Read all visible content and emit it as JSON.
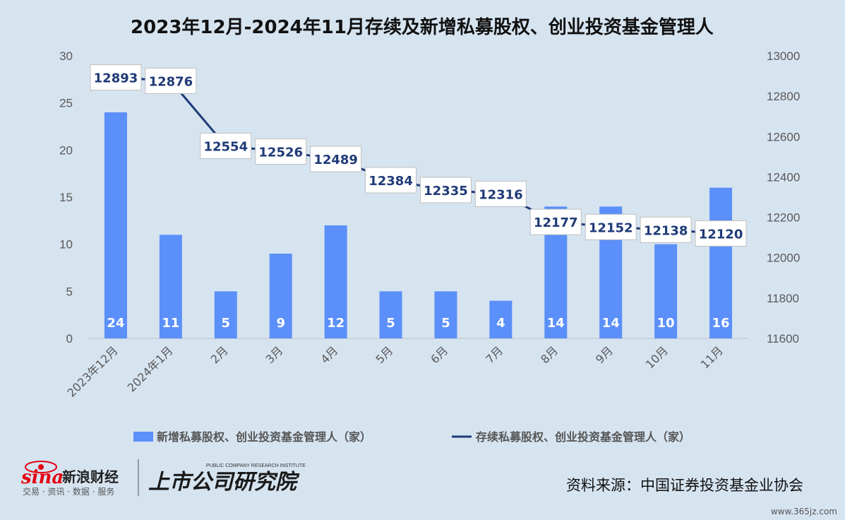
{
  "chart_data": {
    "type": "bar+line",
    "title": "2023年12月-2024年11月存续及新增私募股权、创业投资基金管理人",
    "categories": [
      "2023年12月",
      "2024年1月",
      "2月",
      "3月",
      "4月",
      "5月",
      "6月",
      "7月",
      "8月",
      "9月",
      "10月",
      "11月"
    ],
    "series": [
      {
        "name": "新增私募股权、创业投资基金管理人（家）",
        "kind": "bar",
        "axis": "left",
        "values": [
          24,
          11,
          5,
          9,
          12,
          5,
          5,
          4,
          14,
          14,
          10,
          16
        ],
        "color": "#5b8ff9"
      },
      {
        "name": "存续私募股权、创业投资基金管理人（家）",
        "kind": "line",
        "axis": "right",
        "values": [
          12893,
          12876,
          12554,
          12526,
          12489,
          12384,
          12335,
          12316,
          12177,
          12152,
          12138,
          12120
        ],
        "color": "#1f3a77"
      }
    ],
    "y_left": {
      "min": 0,
      "max": 30,
      "step": 5,
      "ticks": [
        "0",
        "5",
        "10",
        "15",
        "20",
        "25",
        "30"
      ]
    },
    "y_right": {
      "min": 11600,
      "max": 13000,
      "step": 200,
      "ticks": [
        "11600",
        "11800",
        "12000",
        "12200",
        "12400",
        "12600",
        "12800",
        "13000"
      ]
    },
    "grid": false,
    "legend_position": "bottom"
  },
  "footer": {
    "source": "资料来源：中国证券投资基金业协会",
    "logo1_main": "sina",
    "logo1_name": "新浪财经",
    "logo1_sub": "交易 · 资讯 · 数据 · 服务",
    "logo2_main": "上市公司研究院",
    "logo2_sub": "PUBLIC COMPANY RESEARCH INSTITUTE",
    "watermark": "www.365jz.com"
  }
}
